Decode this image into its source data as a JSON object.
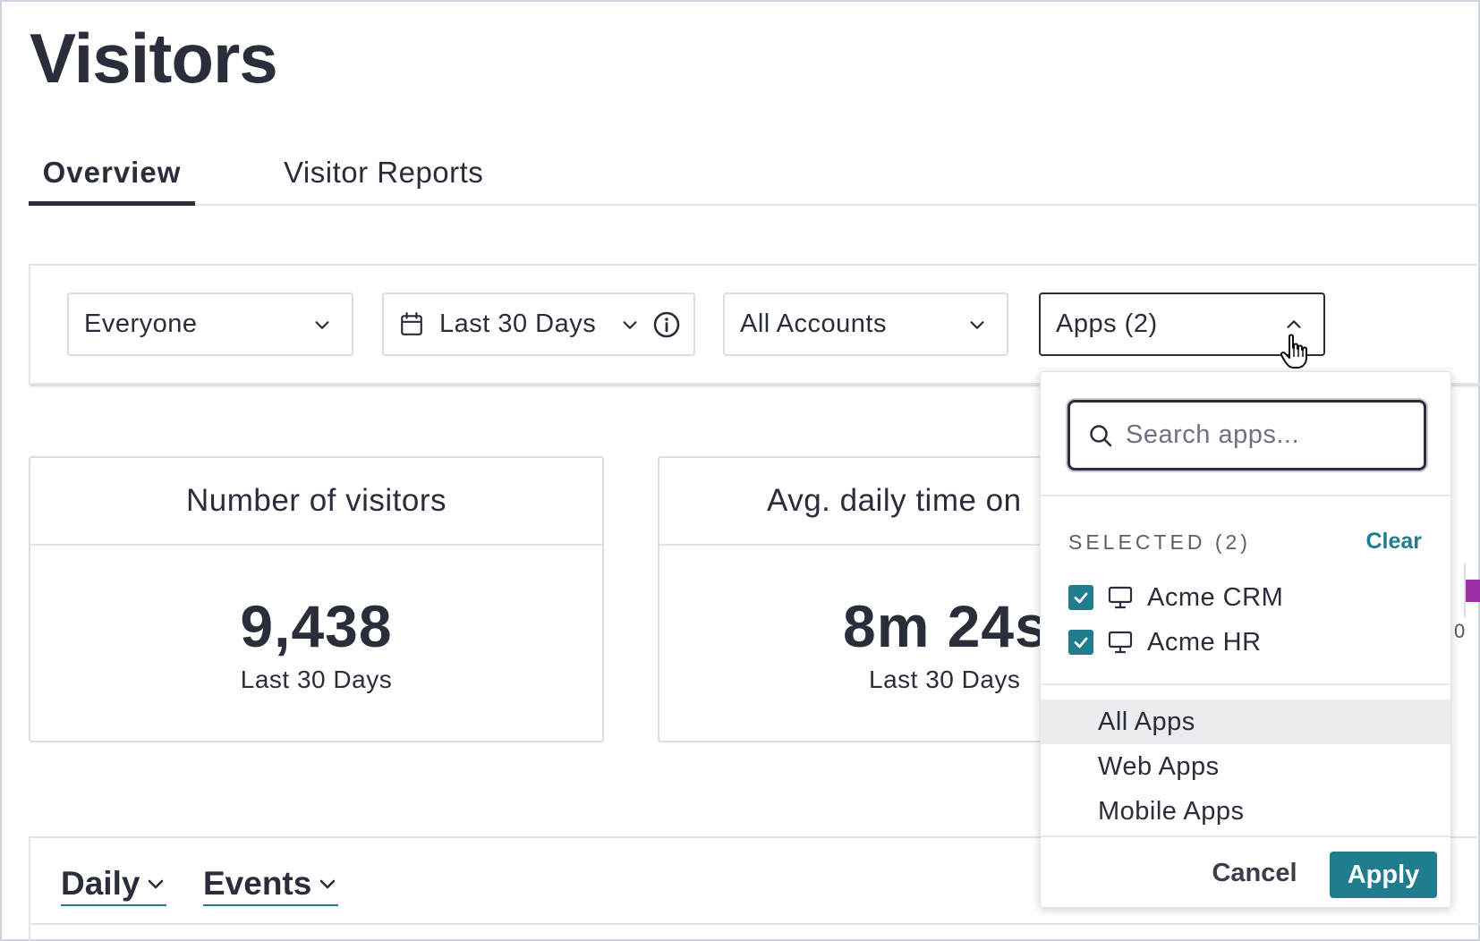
{
  "page": {
    "title": "Visitors"
  },
  "tabs": [
    {
      "label": "Overview",
      "active": true
    },
    {
      "label": "Visitor Reports",
      "active": false
    }
  ],
  "filters": {
    "segment": "Everyone",
    "date_range": "Last 30 Days",
    "accounts": "All Accounts",
    "apps": "Apps (2)"
  },
  "cards": [
    {
      "title": "Number of visitors",
      "value": "9,438",
      "sub": "Last 30 Days"
    },
    {
      "title": "Avg. daily time on",
      "value": "8m 24s",
      "sub": "Last 30 Days"
    }
  ],
  "chart_controls": {
    "interval": "Daily",
    "metric": "Events"
  },
  "chart_edge": {
    "axis_tick": "0",
    "bar_color": "#9d2fa6"
  },
  "apps_dropdown": {
    "search_placeholder": "Search apps...",
    "selected_header": "SELECTED (2)",
    "clear_label": "Clear",
    "selected": [
      {
        "label": "Acme CRM",
        "checked": true,
        "icon": "monitor-icon"
      },
      {
        "label": "Acme HR",
        "checked": true,
        "icon": "monitor-icon"
      }
    ],
    "options": [
      "All Apps",
      "Web Apps",
      "Mobile Apps"
    ],
    "cancel_label": "Cancel",
    "apply_label": "Apply"
  },
  "colors": {
    "accent": "#1f7d8e",
    "text": "#2a2d3a",
    "border": "#dadbe3"
  }
}
